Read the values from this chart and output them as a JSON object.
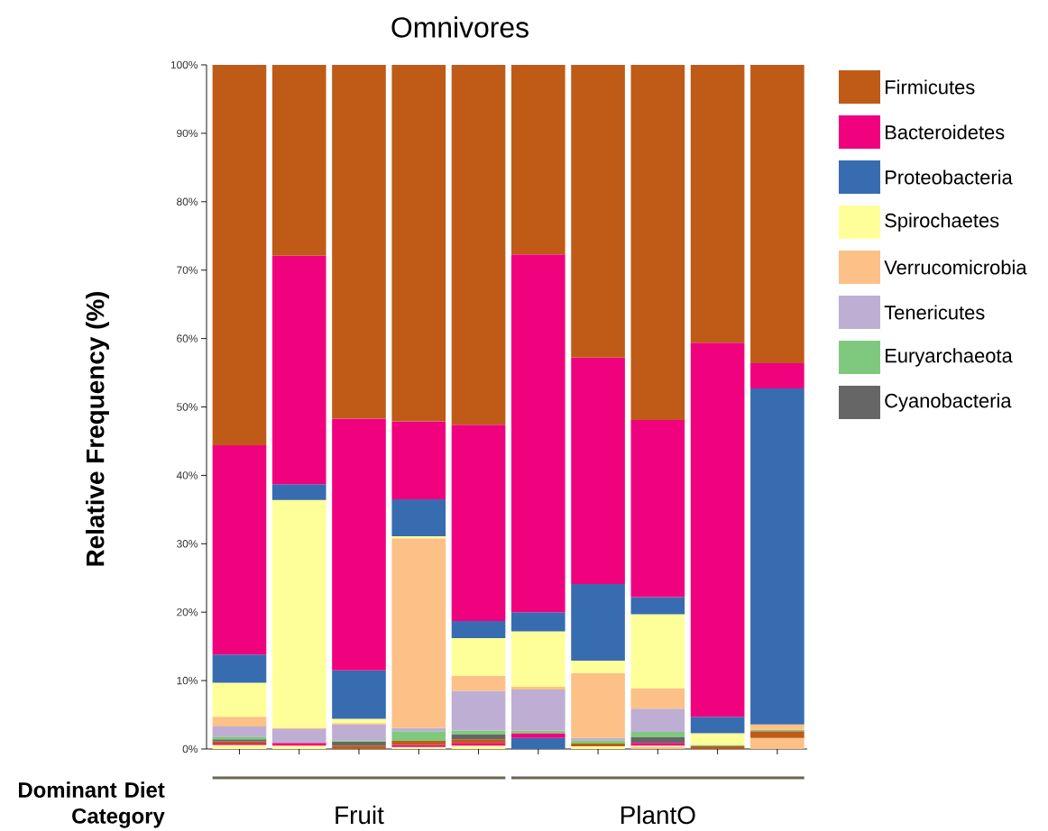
{
  "chart_data": {
    "type": "bar",
    "stacked": true,
    "title": "Omnivores",
    "ylabel": "Relative Frequency (%)",
    "xlabel": "Dominant Diet Category",
    "annotations": [
      "Fruit",
      "PlantO"
    ],
    "categories": [
      null,
      null,
      null,
      null,
      null,
      null,
      null,
      null,
      null,
      null
    ],
    "ylim": [
      0,
      100
    ],
    "yticks": [
      {
        "value": 0,
        "label": "0%"
      },
      {
        "value": 10,
        "label": "10%"
      },
      {
        "value": 20,
        "label": "20%"
      },
      {
        "value": 30,
        "label": "30%"
      },
      {
        "value": 40,
        "label": "40%"
      },
      {
        "value": 50,
        "label": "50%"
      },
      {
        "value": 60,
        "label": "60%"
      },
      {
        "value": 70,
        "label": "70%"
      },
      {
        "value": 80,
        "label": "80%"
      },
      {
        "value": 90,
        "label": "90%"
      },
      {
        "value": 100,
        "label": "100%"
      }
    ],
    "legend": "right",
    "series": [
      {
        "color": "#fdc086",
        "values": [
          null,
          null,
          null,
          null,
          null,
          null,
          null,
          0.3,
          null,
          1.6
        ]
      },
      {
        "color": "#ffff99",
        "values": [
          0.6,
          0.5,
          null,
          0.3,
          0.5,
          null,
          0.4,
          0.2,
          null,
          null
        ]
      },
      {
        "color": "#386cb0",
        "values": [
          null,
          null,
          null,
          null,
          null,
          1.6,
          null,
          null,
          null,
          null
        ]
      },
      {
        "color": "#f0027f",
        "values": [
          0.2,
          0.4,
          null,
          0.3,
          0.4,
          0.7,
          null,
          0.4,
          null,
          null
        ]
      },
      {
        "color": "#bf5b17",
        "values": [
          0.3,
          null,
          0.5,
          0.6,
          0.5,
          null,
          0.4,
          null,
          0.4,
          1.0
        ]
      },
      {
        "name": "Cyanobacteria",
        "color": "#666666",
        "values": [
          0.3,
          null,
          0.6,
          null,
          0.7,
          null,
          null,
          0.8,
          null,
          null
        ]
      },
      {
        "name": "Euryarchaeota",
        "color": "#7fc97f",
        "values": [
          0.4,
          null,
          0.2,
          1.4,
          0.6,
          0.4,
          0.5,
          0.8,
          0.2,
          0.2
        ]
      },
      {
        "name": "Tenericutes",
        "color": "#beaed4",
        "values": [
          1.5,
          2.0,
          2.3,
          0.5,
          5.8,
          6.0,
          0.3,
          3.4,
          null,
          null
        ]
      },
      {
        "name": "Verrucomicrobia",
        "color": "#fdc086",
        "values": [
          1.4,
          0.2,
          0.2,
          27.7,
          2.2,
          0.4,
          9.5,
          3.0,
          null,
          0.8
        ]
      },
      {
        "name": "Spirochaetes",
        "color": "#ffff99",
        "values": [
          5.0,
          33.3,
          0.6,
          0.3,
          5.5,
          8.1,
          1.8,
          10.8,
          1.7,
          null
        ]
      },
      {
        "name": "Proteobacteria",
        "color": "#386cb0",
        "values": [
          4.1,
          2.3,
          7.1,
          5.4,
          2.5,
          2.8,
          11.2,
          2.5,
          2.4,
          49.1
        ]
      },
      {
        "name": "Bacteroidetes",
        "color": "#f0027f",
        "values": [
          30.6,
          33.4,
          36.8,
          11.4,
          28.7,
          52.3,
          33.1,
          25.9,
          54.7,
          3.7
        ]
      },
      {
        "name": "Firmicutes",
        "color": "#bf5b17",
        "values": [
          55.6,
          27.9,
          51.7,
          52.1,
          52.6,
          27.7,
          42.8,
          51.9,
          40.6,
          43.6
        ]
      }
    ]
  }
}
